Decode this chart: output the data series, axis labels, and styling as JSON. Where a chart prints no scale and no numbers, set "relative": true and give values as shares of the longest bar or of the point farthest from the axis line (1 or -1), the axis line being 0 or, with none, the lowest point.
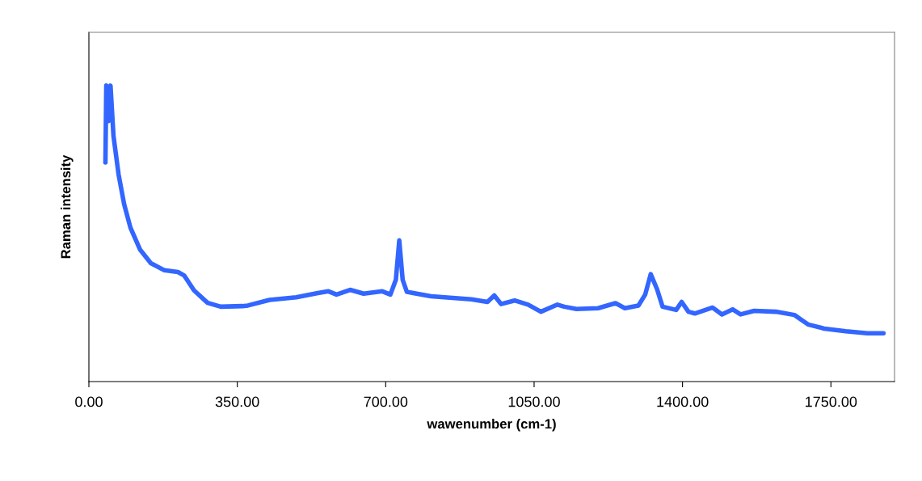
{
  "chart_data": {
    "type": "line",
    "relative": true,
    "xlabel": "wawenumber (cm-1)",
    "ylabel": "Raman intensity",
    "xlim": [
      0,
      1900
    ],
    "xticks": [
      {
        "value": 0,
        "label": "0.00"
      },
      {
        "value": 350,
        "label": "350.00"
      },
      {
        "value": 700,
        "label": "700.00"
      },
      {
        "value": 1050,
        "label": "1050.00"
      },
      {
        "value": 1400,
        "label": "1400.00"
      },
      {
        "value": 1750,
        "label": "1750.00"
      }
    ],
    "grid": false,
    "marker": "none",
    "line_style": "solid",
    "series": [
      {
        "color": "#3366ff",
        "x": [
          39,
          41,
          46,
          51,
          58,
          70,
          83,
          98,
          121,
          146,
          178,
          210,
          225,
          248,
          280,
          311,
          362,
          375,
          426,
          489,
          540,
          565,
          584,
          616,
          648,
          692,
          711,
          724,
          732,
          740,
          750,
          807,
          902,
          940,
          956,
          972,
          1004,
          1036,
          1066,
          1105,
          1121,
          1150,
          1201,
          1242,
          1264,
          1296,
          1312,
          1325,
          1340,
          1353,
          1385,
          1398,
          1414,
          1429,
          1471,
          1493,
          1518,
          1537,
          1569,
          1620,
          1664,
          1680,
          1696,
          1734,
          1785,
          1836,
          1874
        ],
        "values": [
          0.74,
          1.0,
          0.88,
          1.0,
          0.83,
          0.7,
          0.6,
          0.52,
          0.445,
          0.4,
          0.376,
          0.37,
          0.358,
          0.308,
          0.266,
          0.253,
          0.255,
          0.257,
          0.276,
          0.285,
          0.299,
          0.305,
          0.294,
          0.31,
          0.297,
          0.305,
          0.294,
          0.344,
          0.477,
          0.344,
          0.303,
          0.288,
          0.278,
          0.269,
          0.291,
          0.262,
          0.274,
          0.26,
          0.236,
          0.26,
          0.253,
          0.245,
          0.248,
          0.265,
          0.248,
          0.257,
          0.294,
          0.363,
          0.312,
          0.253,
          0.242,
          0.269,
          0.236,
          0.23,
          0.25,
          0.227,
          0.244,
          0.227,
          0.239,
          0.236,
          0.225,
          0.209,
          0.193,
          0.179,
          0.17,
          0.163,
          0.163
        ]
      }
    ]
  }
}
